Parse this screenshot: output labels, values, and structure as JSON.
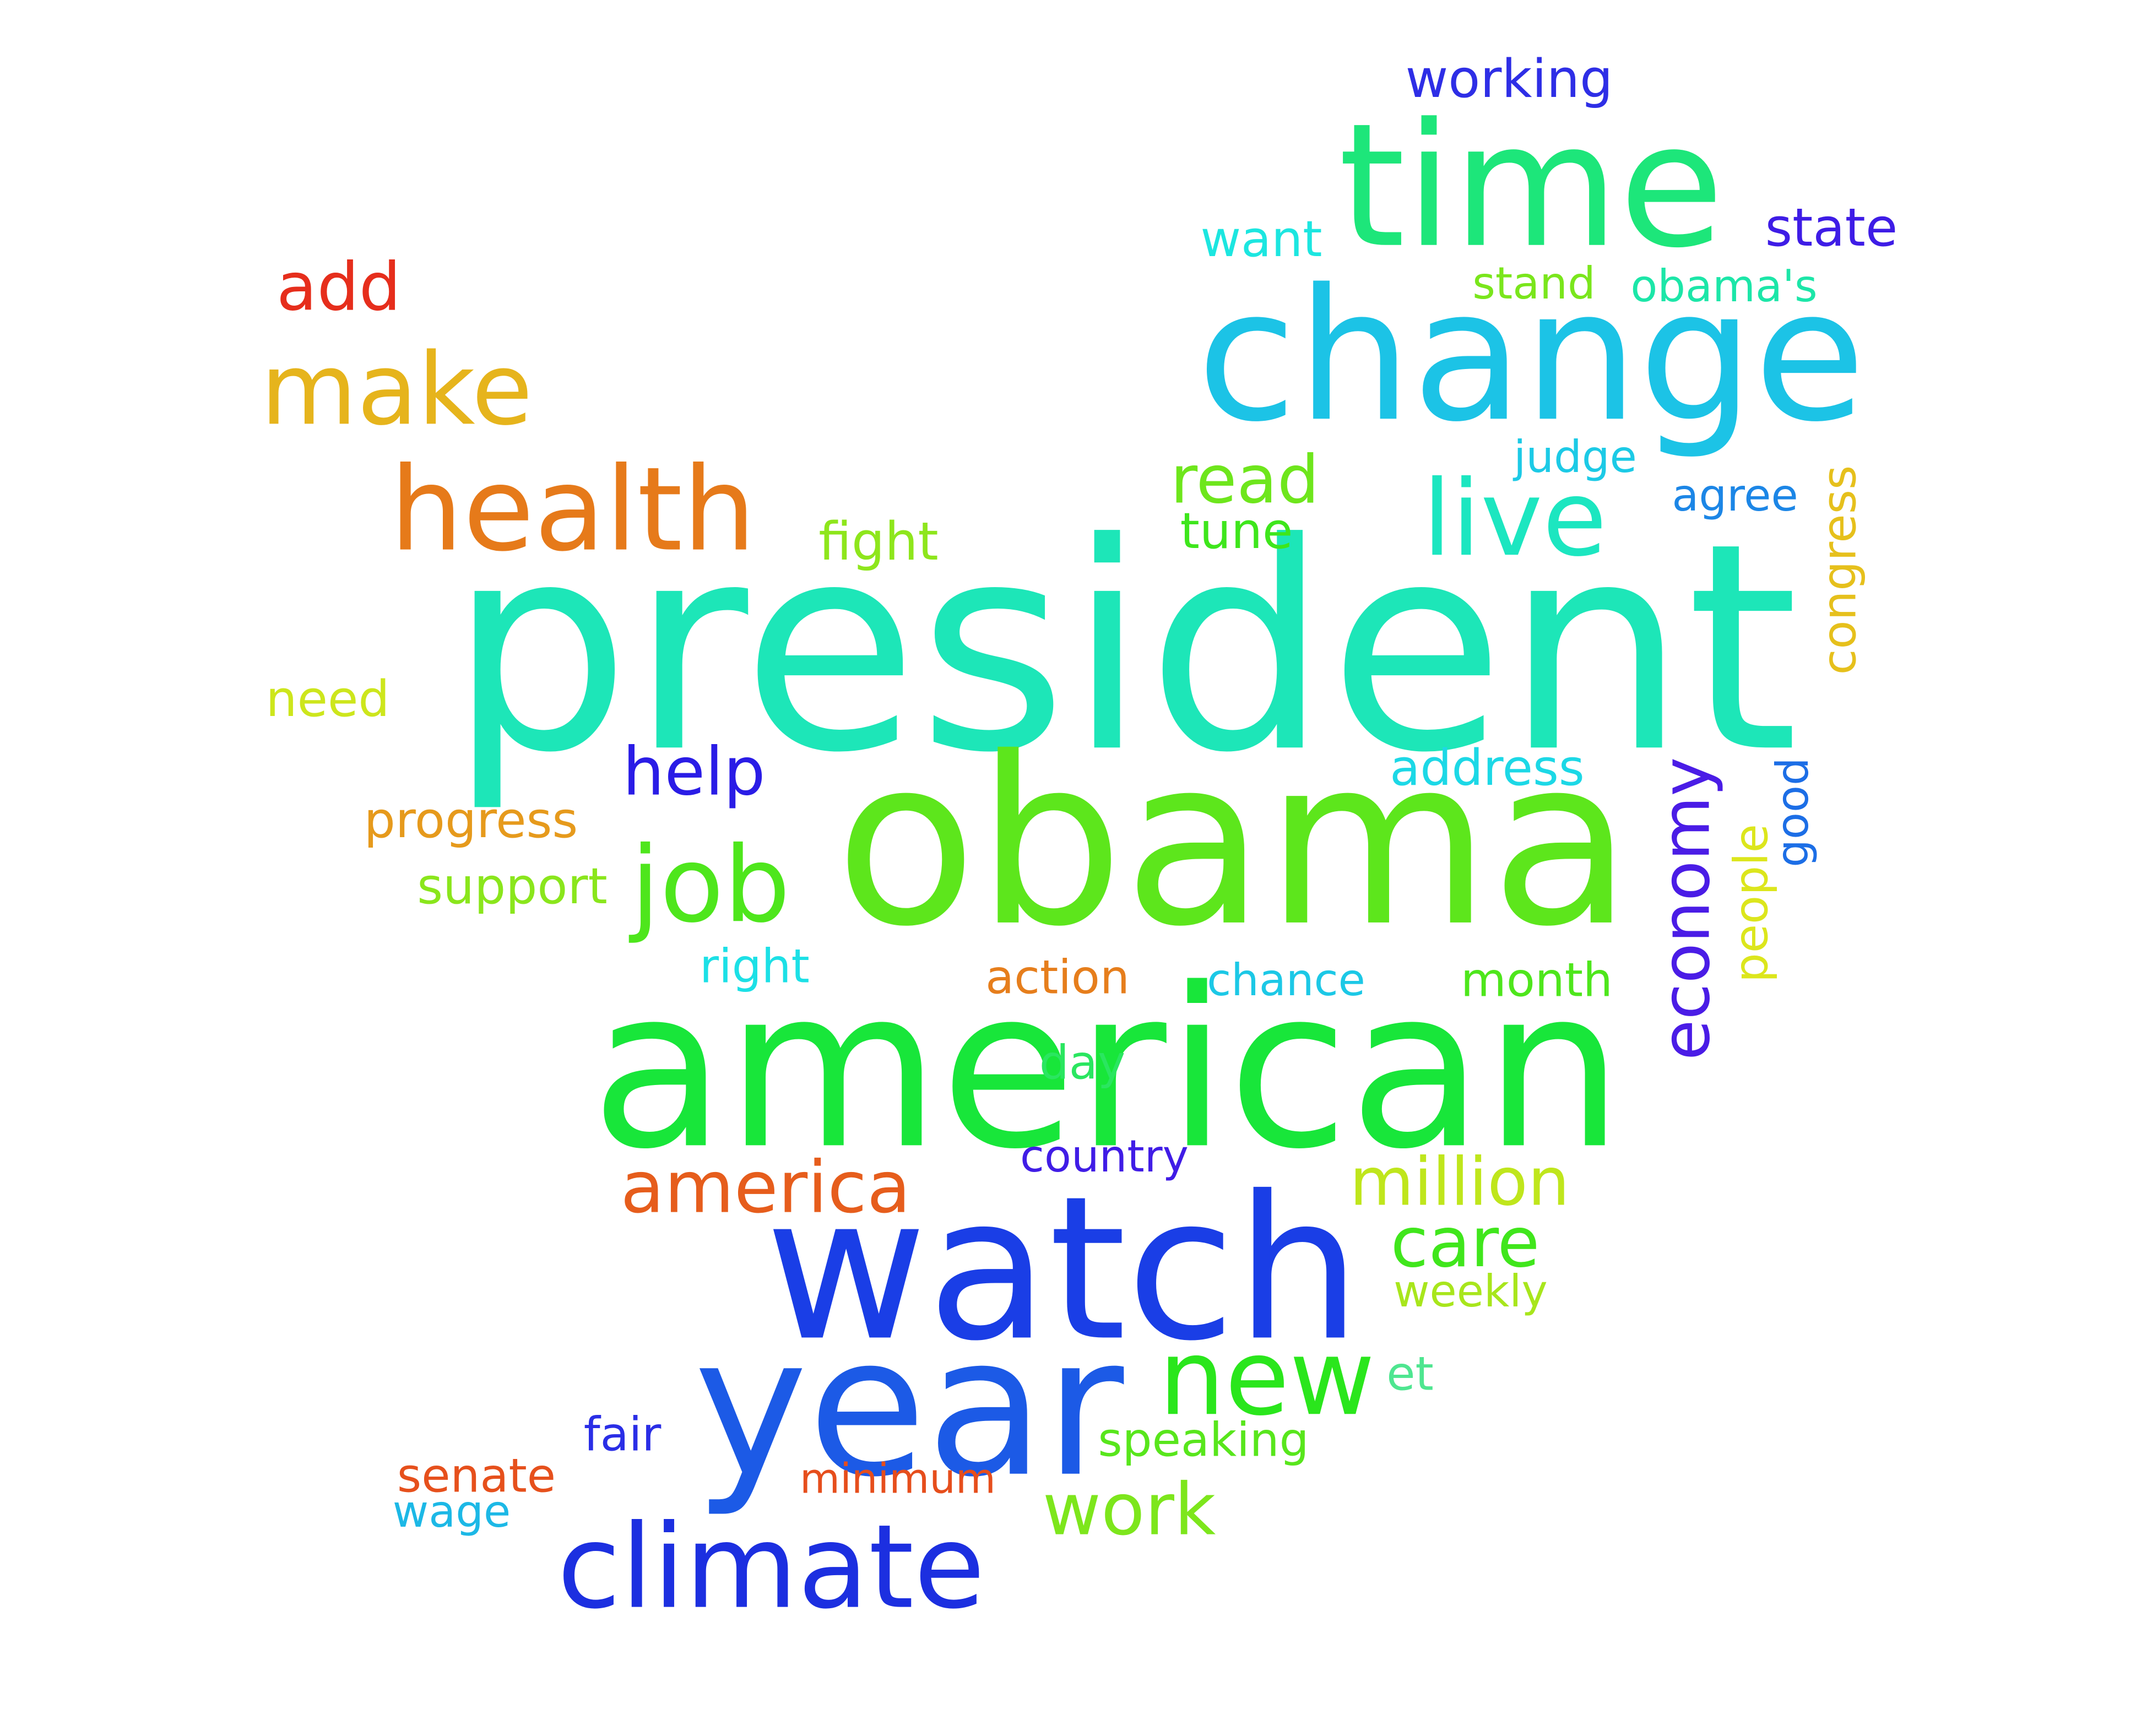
{
  "words": [
    {
      "text": "president",
      "color": "#1de6b8"
    },
    {
      "text": "obama",
      "color": "#5de61c"
    },
    {
      "text": "american",
      "color": "#18e63a"
    },
    {
      "text": "watch",
      "color": "#1a3ee6"
    },
    {
      "text": "change",
      "color": "#1cc3e6"
    },
    {
      "text": "time",
      "color": "#1de67a"
    },
    {
      "text": "year",
      "color": "#1c5ae6"
    },
    {
      "text": "climate",
      "color": "#1c2fe0"
    },
    {
      "text": "health",
      "color": "#e67a1a"
    },
    {
      "text": "make",
      "color": "#e6b41c"
    },
    {
      "text": "live",
      "color": "#1ce6c0"
    },
    {
      "text": "job",
      "color": "#4ee61c"
    },
    {
      "text": "new",
      "color": "#2ae61c"
    },
    {
      "text": "economy",
      "color": "#4a1ce6"
    },
    {
      "text": "america",
      "color": "#e65d1c"
    },
    {
      "text": "million",
      "color": "#bfe61c"
    },
    {
      "text": "work",
      "color": "#7de61c"
    },
    {
      "text": "care",
      "color": "#40e61c"
    },
    {
      "text": "read",
      "color": "#6ee61c"
    },
    {
      "text": "help",
      "color": "#2a1ce6"
    },
    {
      "text": "add",
      "color": "#e62e1c"
    },
    {
      "text": "working",
      "color": "#2e2ee6"
    },
    {
      "text": "state",
      "color": "#3e1ce6"
    },
    {
      "text": "want",
      "color": "#1ce6e0"
    },
    {
      "text": "stand",
      "color": "#7ae61c"
    },
    {
      "text": "obama's",
      "color": "#1ce6a8"
    },
    {
      "text": "judge",
      "color": "#1ccae6"
    },
    {
      "text": "agree",
      "color": "#1c86e6"
    },
    {
      "text": "congress",
      "color": "#e6c01c"
    },
    {
      "text": "fight",
      "color": "#8ee61c"
    },
    {
      "text": "tune",
      "color": "#3ee61c"
    },
    {
      "text": "need",
      "color": "#cde61c"
    },
    {
      "text": "address",
      "color": "#1cd8e6"
    },
    {
      "text": "progress",
      "color": "#e69a1c"
    },
    {
      "text": "support",
      "color": "#8ae61c"
    },
    {
      "text": "people",
      "color": "#dce61c"
    },
    {
      "text": "good",
      "color": "#1c6ee6"
    },
    {
      "text": "right",
      "color": "#1ce0e6"
    },
    {
      "text": "action",
      "color": "#e67e1c"
    },
    {
      "text": "chance",
      "color": "#1cc8e6"
    },
    {
      "text": "month",
      "color": "#4ee61c"
    },
    {
      "text": "day",
      "color": "#2ae660"
    },
    {
      "text": "country",
      "color": "#401ce6"
    },
    {
      "text": "weekly",
      "color": "#a8e61c"
    },
    {
      "text": "et",
      "color": "#4ee690"
    },
    {
      "text": "fair",
      "color": "#2a2ee6"
    },
    {
      "text": "speaking",
      "color": "#58e61c"
    },
    {
      "text": "senate",
      "color": "#e6501c"
    },
    {
      "text": "minimum",
      "color": "#e64e1c"
    },
    {
      "text": "wage",
      "color": "#1cb8e6"
    }
  ]
}
